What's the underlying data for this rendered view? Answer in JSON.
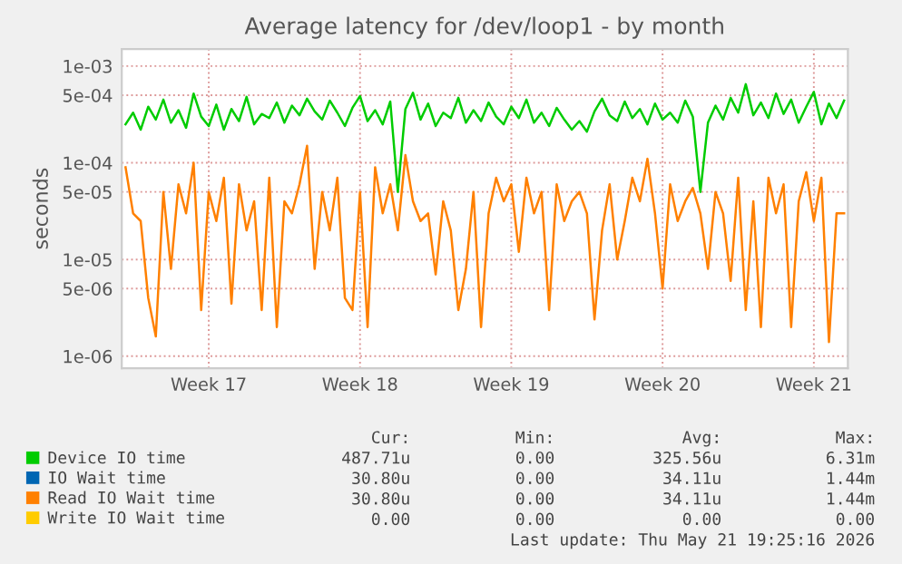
{
  "chart_data": {
    "type": "line",
    "title": "Average latency for /dev/loop1 - by month",
    "ylabel": "seconds",
    "log": "y",
    "ylim": [
      7.5e-07,
      0.0015
    ],
    "yticks": [
      {
        "value": 0.001,
        "label": "1e-03"
      },
      {
        "value": 0.0005,
        "label": "5e-04"
      },
      {
        "value": 0.0001,
        "label": "1e-04"
      },
      {
        "value": 5e-05,
        "label": "5e-05"
      },
      {
        "value": 1e-05,
        "label": "1e-05"
      },
      {
        "value": 5e-06,
        "label": "5e-06"
      },
      {
        "value": 1e-06,
        "label": "1e-06"
      }
    ],
    "grid": true,
    "legend": "bottom",
    "line_style": "solid",
    "marker": "none",
    "categories": [
      null,
      null,
      null,
      null,
      null,
      null,
      null,
      null,
      null,
      null,
      null,
      "Week 17",
      null,
      null,
      null,
      null,
      null,
      null,
      null,
      null,
      null,
      null,
      null,
      null,
      null,
      null,
      null,
      null,
      null,
      null,
      null,
      "Week 18",
      null,
      null,
      null,
      null,
      null,
      null,
      null,
      null,
      null,
      null,
      null,
      null,
      null,
      null,
      null,
      null,
      null,
      null,
      null,
      "Week 19",
      null,
      null,
      null,
      null,
      null,
      null,
      null,
      null,
      null,
      null,
      null,
      null,
      null,
      null,
      null,
      null,
      null,
      null,
      null,
      "Week 20",
      null,
      null,
      null,
      null,
      null,
      null,
      null,
      null,
      null,
      null,
      null,
      null,
      null,
      null,
      null,
      null,
      null,
      null,
      null,
      "Week 21",
      null,
      null,
      null,
      null
    ],
    "series": [
      {
        "name": "Device IO time",
        "color": "#00cc00",
        "values": [
          0.00025,
          0.00033,
          0.00022,
          0.00038,
          0.00028,
          0.00045,
          0.00026,
          0.00035,
          0.00023,
          0.00052,
          0.0003,
          0.00024,
          0.0004,
          0.00022,
          0.00036,
          0.00027,
          0.00048,
          0.00025,
          0.00032,
          0.00029,
          0.00042,
          0.00026,
          0.00039,
          0.00031,
          0.00046,
          0.00034,
          0.00028,
          0.00044,
          0.00033,
          0.00024,
          0.00037,
          0.00049,
          0.00027,
          0.00035,
          0.00025,
          0.00043,
          5e-05,
          0.00036,
          0.00053,
          0.00028,
          0.00041,
          0.00024,
          0.00033,
          0.00029,
          0.00047,
          0.00026,
          0.00035,
          0.00027,
          0.00042,
          0.0003,
          0.00025,
          0.00038,
          0.00029,
          0.00045,
          0.00026,
          0.00033,
          0.00024,
          0.00037,
          0.00028,
          0.00022,
          0.00027,
          0.00021,
          0.00034,
          0.00046,
          0.00031,
          0.00027,
          0.00043,
          0.00029,
          0.00036,
          0.00025,
          0.00041,
          0.00028,
          0.00033,
          0.00026,
          0.00044,
          0.0003,
          5e-05,
          0.00026,
          0.00039,
          0.00028,
          0.00047,
          0.00033,
          0.00065,
          0.00031,
          0.00042,
          0.00029,
          0.00052,
          0.00032,
          0.00045,
          0.00026,
          0.00038,
          0.00054,
          0.00025,
          0.00041,
          0.00029,
          0.00044
        ]
      },
      {
        "name": "IO Wait time",
        "color": "#0066b3",
        "values": [
          null,
          null,
          null,
          null,
          null,
          null,
          null,
          null,
          null,
          null,
          null,
          null,
          null,
          null,
          null,
          null,
          null,
          null,
          null,
          null,
          null,
          null,
          null,
          null,
          null,
          null,
          null,
          null,
          null,
          null,
          null,
          null,
          null,
          null,
          null,
          null,
          null,
          null,
          null,
          null,
          null,
          null,
          null,
          null,
          null,
          null,
          null,
          null,
          null,
          null,
          null,
          null,
          null,
          null,
          null,
          null,
          null,
          null,
          null,
          null,
          null,
          null,
          null,
          null,
          null,
          null,
          null,
          null,
          null,
          null,
          null,
          null,
          null,
          null,
          null,
          null,
          null,
          null,
          null,
          null,
          null,
          null,
          null,
          null,
          null,
          null,
          null,
          null,
          null,
          null,
          null,
          null,
          null,
          null,
          null,
          null
        ]
      },
      {
        "name": "Read IO Wait time",
        "color": "#ff8000",
        "values": [
          9e-05,
          3e-05,
          2.5e-05,
          4e-06,
          1.6e-06,
          5e-05,
          8e-06,
          6e-05,
          3e-05,
          0.0001,
          3e-06,
          5e-05,
          2.5e-05,
          7e-05,
          3.5e-06,
          6e-05,
          2e-05,
          4e-05,
          3e-06,
          7e-05,
          2e-06,
          4e-05,
          3e-05,
          6e-05,
          0.00015,
          8e-06,
          5e-05,
          2e-05,
          7e-05,
          4e-06,
          3e-06,
          5e-05,
          2e-06,
          9e-05,
          3e-05,
          6e-05,
          2e-05,
          0.00012,
          4e-05,
          2.5e-05,
          3e-05,
          7e-06,
          4e-05,
          2e-05,
          3e-06,
          8e-06,
          5e-05,
          2e-06,
          3e-05,
          7e-05,
          4e-05,
          6e-05,
          1.2e-05,
          7e-05,
          3e-05,
          5e-05,
          3e-06,
          6e-05,
          2.5e-05,
          4e-05,
          5e-05,
          3e-05,
          2.4e-06,
          2e-05,
          6e-05,
          1e-05,
          2.5e-05,
          7e-05,
          4e-05,
          0.00011,
          3e-05,
          5e-06,
          6e-05,
          2.5e-05,
          4e-05,
          5.5e-05,
          3e-05,
          8e-06,
          5e-05,
          3e-05,
          6e-06,
          7e-05,
          3e-06,
          4e-05,
          2e-06,
          7e-05,
          3e-05,
          6e-05,
          2e-06,
          4e-05,
          8e-05,
          2.5e-05,
          7e-05,
          1.4e-06,
          3e-05,
          3e-05
        ]
      },
      {
        "name": "Write IO Wait time",
        "color": "#ffcc00",
        "values": [
          null,
          null,
          null,
          null,
          null,
          null,
          null,
          null,
          null,
          null,
          null,
          null,
          null,
          null,
          null,
          null,
          null,
          null,
          null,
          null,
          null,
          null,
          null,
          null,
          null,
          null,
          null,
          null,
          null,
          null,
          null,
          null,
          null,
          null,
          null,
          null,
          null,
          null,
          null,
          null,
          null,
          null,
          null,
          null,
          null,
          null,
          null,
          null,
          null,
          null,
          null,
          null,
          null,
          null,
          null,
          null,
          null,
          null,
          null,
          null,
          null,
          null,
          null,
          null,
          null,
          null,
          null,
          null,
          null,
          null,
          null,
          null,
          null,
          null,
          null,
          null,
          null,
          null,
          null,
          null,
          null,
          null,
          null,
          null,
          null,
          null,
          null,
          null,
          null,
          null,
          null,
          null,
          null,
          null,
          null,
          null
        ]
      }
    ],
    "annotations": [
      "Cur:",
      "Min:",
      "Avg:",
      "Max:",
      "487.71u",
      "0.00",
      "325.56u",
      "6.31m",
      "30.80u",
      "0.00",
      "34.11u",
      "1.44m",
      "30.80u",
      "0.00",
      "34.11u",
      "1.44m",
      "0.00",
      "0.00",
      "0.00",
      "0.00",
      "Last update: Thu May 21 19:25:16 2026"
    ]
  }
}
